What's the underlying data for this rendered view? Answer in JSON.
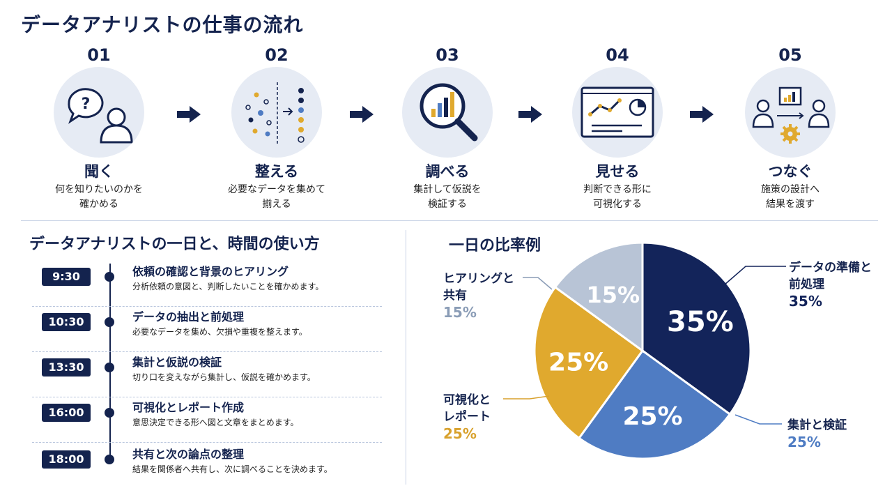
{
  "page_title": "データアナリストの仕事の流れ",
  "steps": [
    {
      "num": "01",
      "title": "聞く",
      "desc_line1": "何を知りたいのかを",
      "desc_line2": "確かめる",
      "icon": "question-user-icon"
    },
    {
      "num": "02",
      "title": "整える",
      "desc_line1": "必要なデータを集めて",
      "desc_line2": "揃える",
      "icon": "scatter-to-ordered-dots-icon"
    },
    {
      "num": "03",
      "title": "調べる",
      "desc_line1": "集計して仮説を",
      "desc_line2": "検証する",
      "icon": "magnifier-chart-icon"
    },
    {
      "num": "04",
      "title": "見せる",
      "desc_line1": "判断できる形に",
      "desc_line2": "可視化する",
      "icon": "dashboard-screen-icon"
    },
    {
      "num": "05",
      "title": "つなぐ",
      "desc_line1": "施策の設計へ",
      "desc_line2": "結果を渡す",
      "icon": "people-share-gear-icon"
    }
  ],
  "timeline": {
    "title": "データアナリストの一日と、時間の使い方",
    "items": [
      {
        "time": "9:30",
        "title": "依頼の確認と背景のヒアリング",
        "desc": "分析依頼の意図と、判断したいことを確かめます。"
      },
      {
        "time": "10:30",
        "title": "データの抽出と前処理",
        "desc": "必要なデータを集め、欠損や重複を整えます。"
      },
      {
        "time": "13:30",
        "title": "集計と仮説の検証",
        "desc": "切り口を変えながら集計し、仮説を確かめます。"
      },
      {
        "time": "16:00",
        "title": "可視化とレポート作成",
        "desc": "意思決定できる形へ図と文章をまとめます。"
      },
      {
        "time": "18:00",
        "title": "共有と次の論点の整理",
        "desc": "結果を関係者へ共有し、次に調べることを決めます。"
      }
    ]
  },
  "chart_data": {
    "type": "pie",
    "title": "一日の比率例",
    "slices": [
      {
        "label_line1": "データの準備と",
        "label_line2": "前処理",
        "value": 35,
        "pct_text": "35%",
        "color": "#13245a",
        "label_color": "#13245a",
        "inner_text_color": "#ffffff"
      },
      {
        "label_line1": "集計と検証",
        "label_line2": "",
        "value": 25,
        "pct_text": "25%",
        "color": "#4f7cc3",
        "label_color": "#4f7cc3",
        "inner_text_color": "#ffffff"
      },
      {
        "label_line1": "可視化と",
        "label_line2": "レポート",
        "value": 25,
        "pct_text": "25%",
        "color": "#e0a92e",
        "label_color": "#d8a12c",
        "inner_text_color": "#ffffff"
      },
      {
        "label_line1": "ヒアリングと",
        "label_line2": "共有",
        "value": 15,
        "pct_text": "15%",
        "color": "#b8c4d6",
        "label_color": "#8a9cb6",
        "inner_text_color": "#ffffff"
      }
    ]
  },
  "colors": {
    "navy": "#14234e",
    "blue": "#4f7cc3",
    "gold": "#e0a92e",
    "gray": "#b8c4d6",
    "circle_bg": "#e6ebf4"
  }
}
